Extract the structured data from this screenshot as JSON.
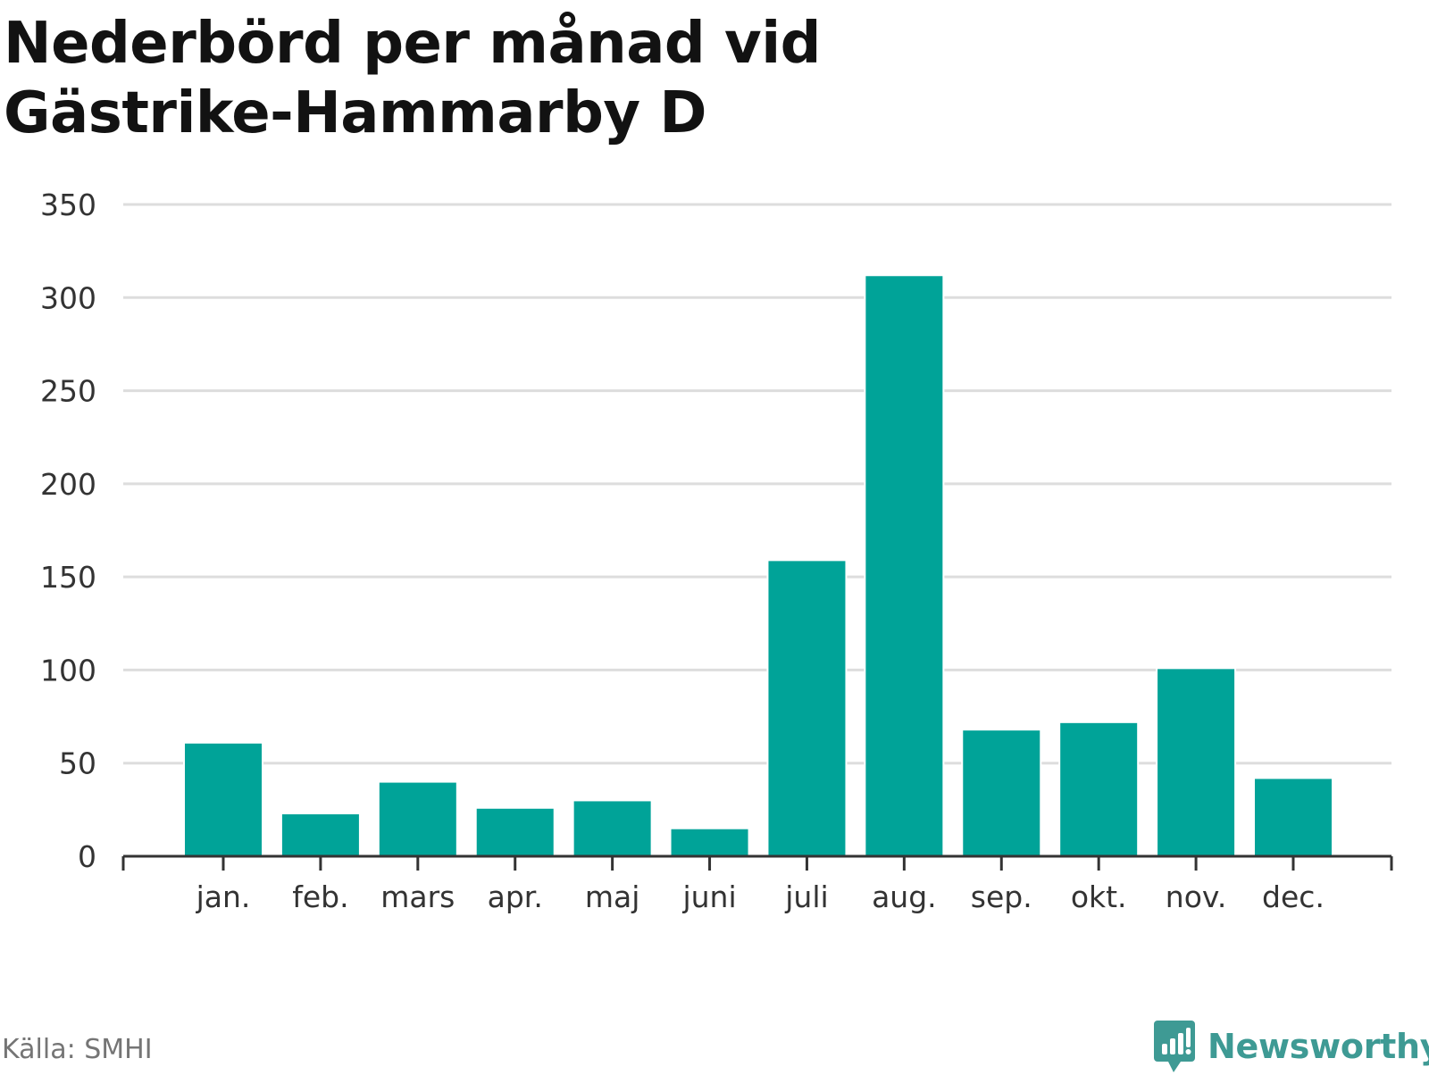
{
  "title": {
    "line1": "Nederbörd per månad vid",
    "line2": "Gästrike-Hammarby D"
  },
  "source": "Källa: SMHI",
  "brand": {
    "name": "Newsworthy",
    "icon": "newsworthy-logo-icon",
    "color": "#3e9a94"
  },
  "colors": {
    "bar": "#00a398",
    "grid": "#dddddd",
    "axis": "#333333",
    "text": "#333333"
  },
  "chart_data": {
    "type": "bar",
    "categories": [
      "jan.",
      "feb.",
      "mars",
      "apr.",
      "maj",
      "juni",
      "juli",
      "aug.",
      "sep.",
      "okt.",
      "nov.",
      "dec."
    ],
    "values": [
      61,
      23,
      40,
      26,
      30,
      15,
      159,
      312,
      68,
      72,
      101,
      42
    ],
    "title": "Nederbörd per månad vid Gästrike-Hammarby D",
    "xlabel": "",
    "ylabel": "",
    "ylim": [
      0,
      350
    ],
    "yticks": [
      0,
      50,
      100,
      150,
      200,
      250,
      300,
      350
    ],
    "grid": true,
    "legend": "none"
  }
}
